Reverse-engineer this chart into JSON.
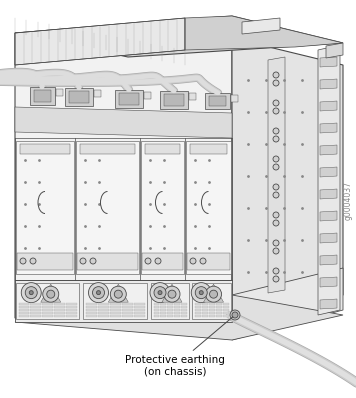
{
  "background_color": "#ffffff",
  "label_text": "Protective earthing\n(on chassis)",
  "annotation_fontsize": 7.5,
  "outline_color": "#4a4a4a",
  "light_gray": "#d8d8d8",
  "medium_gray": "#b8b8b8",
  "dark_gray": "#555555",
  "very_light_gray": "#f0f0f0",
  "panel_gray": "#e8e8e8",
  "side_gray": "#e0e0e0",
  "top_gray": "#d0d0d0",
  "cable_gray": "#c8c8c8",
  "figure_width": 3.56,
  "figure_height": 3.98,
  "dpi": 100,
  "watermark": "g0004037",
  "watermark_fontsize": 5.5
}
